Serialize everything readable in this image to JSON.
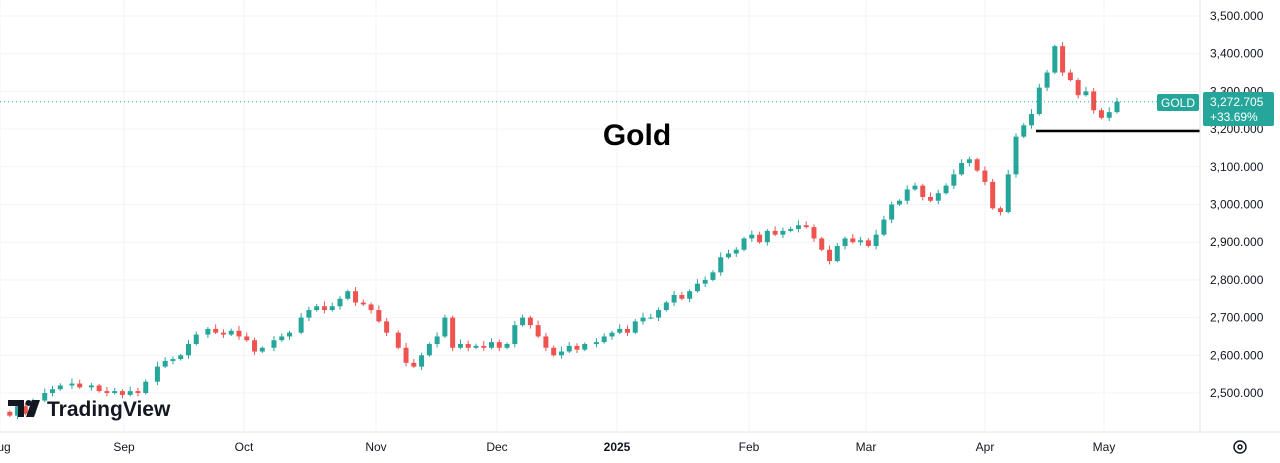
{
  "chart_data": {
    "type": "candlestick",
    "title": "Gold",
    "symbol": "GOLD",
    "last_price_label": "3,272.705",
    "change_label": "+33.69%",
    "last_price": 3272.705,
    "support_level": 3195,
    "ylim": [
      2400,
      3520
    ],
    "y_ticks": [
      2500,
      2600,
      2700,
      2800,
      2900,
      3000,
      3100,
      3200,
      3300,
      3400,
      3500
    ],
    "y_tick_labels": [
      "2,500.000",
      "2,600.000",
      "2,700.000",
      "2,800.000",
      "2,900.000",
      "3,000.000",
      "3,100.000",
      "3,200.000",
      "3,300.000",
      "3,400.000",
      "3,500.000"
    ],
    "x_range_days": [
      0,
      280
    ],
    "x_ticks": [
      {
        "label": "Aug",
        "day": 0
      },
      {
        "label": "Sep",
        "day": 31
      },
      {
        "label": "Oct",
        "day": 61
      },
      {
        "label": "Nov",
        "day": 92
      },
      {
        "label": "Dec",
        "day": 122
      },
      {
        "label": "2025",
        "day": 153,
        "bold": true
      },
      {
        "label": "Feb",
        "day": 184
      },
      {
        "label": "Mar",
        "day": 212
      },
      {
        "label": "Apr",
        "day": 243
      },
      {
        "label": "May",
        "day": 273
      }
    ],
    "up_color": "#26a69a",
    "down_color": "#ef5350",
    "close_anchors": [
      [
        2,
        2440
      ],
      [
        4,
        2465
      ],
      [
        6,
        2445
      ],
      [
        8,
        2480
      ],
      [
        11,
        2500
      ],
      [
        13,
        2510
      ],
      [
        15,
        2520
      ],
      [
        18,
        2525
      ],
      [
        20,
        2515
      ],
      [
        23,
        2520
      ],
      [
        25,
        2505
      ],
      [
        27,
        2500
      ],
      [
        29,
        2505
      ],
      [
        31,
        2495
      ],
      [
        33,
        2505
      ],
      [
        35,
        2500
      ],
      [
        37,
        2530
      ],
      [
        40,
        2570
      ],
      [
        42,
        2585
      ],
      [
        44,
        2590
      ],
      [
        46,
        2600
      ],
      [
        48,
        2630
      ],
      [
        50,
        2655
      ],
      [
        53,
        2670
      ],
      [
        55,
        2660
      ],
      [
        57,
        2655
      ],
      [
        59,
        2665
      ],
      [
        61,
        2650
      ],
      [
        63,
        2640
      ],
      [
        65,
        2610
      ],
      [
        67,
        2620
      ],
      [
        70,
        2640
      ],
      [
        72,
        2650
      ],
      [
        74,
        2660
      ],
      [
        77,
        2700
      ],
      [
        79,
        2720
      ],
      [
        81,
        2730
      ],
      [
        83,
        2720
      ],
      [
        85,
        2730
      ],
      [
        87,
        2750
      ],
      [
        89,
        2770
      ],
      [
        91,
        2740
      ],
      [
        93,
        2735
      ],
      [
        95,
        2720
      ],
      [
        97,
        2690
      ],
      [
        99,
        2660
      ],
      [
        102,
        2620
      ],
      [
        104,
        2580
      ],
      [
        106,
        2570
      ],
      [
        108,
        2600
      ],
      [
        110,
        2630
      ],
      [
        112,
        2650
      ],
      [
        114,
        2700
      ],
      [
        116,
        2620
      ],
      [
        118,
        2630
      ],
      [
        120,
        2620
      ],
      [
        122,
        2625
      ],
      [
        124,
        2620
      ],
      [
        126,
        2635
      ],
      [
        128,
        2620
      ],
      [
        130,
        2630
      ],
      [
        132,
        2680
      ],
      [
        134,
        2700
      ],
      [
        136,
        2680
      ],
      [
        138,
        2650
      ],
      [
        140,
        2620
      ],
      [
        142,
        2600
      ],
      [
        144,
        2610
      ],
      [
        146,
        2625
      ],
      [
        148,
        2615
      ],
      [
        150,
        2630
      ],
      [
        153,
        2635
      ],
      [
        155,
        2650
      ],
      [
        157,
        2660
      ],
      [
        159,
        2670
      ],
      [
        161,
        2660
      ],
      [
        163,
        2690
      ],
      [
        165,
        2700
      ],
      [
        167,
        2700
      ],
      [
        169,
        2720
      ],
      [
        171,
        2740
      ],
      [
        173,
        2760
      ],
      [
        175,
        2750
      ],
      [
        177,
        2770
      ],
      [
        179,
        2790
      ],
      [
        181,
        2800
      ],
      [
        183,
        2820
      ],
      [
        185,
        2860
      ],
      [
        187,
        2870
      ],
      [
        189,
        2880
      ],
      [
        191,
        2910
      ],
      [
        193,
        2920
      ],
      [
        195,
        2900
      ],
      [
        197,
        2930
      ],
      [
        199,
        2920
      ],
      [
        201,
        2930
      ],
      [
        203,
        2935
      ],
      [
        205,
        2945
      ],
      [
        207,
        2940
      ],
      [
        209,
        2910
      ],
      [
        211,
        2880
      ],
      [
        213,
        2850
      ],
      [
        215,
        2890
      ],
      [
        217,
        2910
      ],
      [
        219,
        2900
      ],
      [
        221,
        2905
      ],
      [
        223,
        2890
      ],
      [
        225,
        2920
      ],
      [
        227,
        2960
      ],
      [
        229,
        3000
      ],
      [
        231,
        3010
      ],
      [
        233,
        3040
      ],
      [
        235,
        3050
      ],
      [
        237,
        3020
      ],
      [
        239,
        3010
      ],
      [
        241,
        3030
      ],
      [
        243,
        3050
      ],
      [
        245,
        3080
      ],
      [
        247,
        3110
      ],
      [
        249,
        3120
      ],
      [
        251,
        3090
      ],
      [
        253,
        3060
      ],
      [
        255,
        2990
      ],
      [
        257,
        2980
      ],
      [
        259,
        3080
      ],
      [
        261,
        3180
      ],
      [
        263,
        3210
      ],
      [
        265,
        3240
      ],
      [
        267,
        3310
      ],
      [
        269,
        3350
      ],
      [
        271,
        3420
      ],
      [
        273,
        3350
      ],
      [
        275,
        3330
      ],
      [
        277,
        3290
      ],
      [
        279,
        3300
      ],
      [
        281,
        3250
      ],
      [
        283,
        3230
      ],
      [
        285,
        3245
      ],
      [
        287,
        3273
      ]
    ]
  }
}
